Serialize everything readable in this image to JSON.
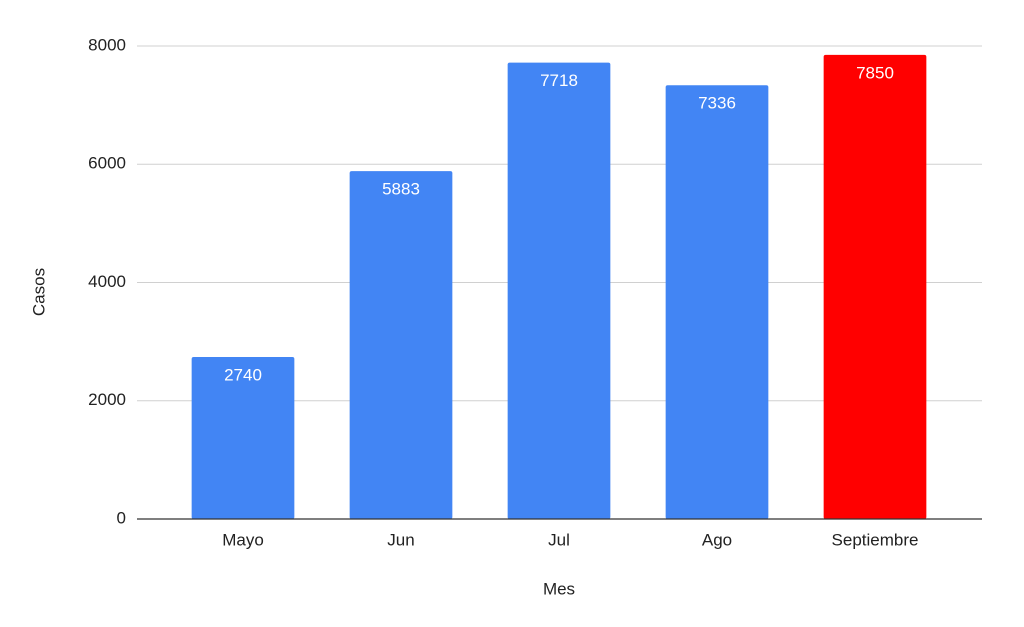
{
  "chart_data": {
    "type": "bar",
    "x_label": "Mes",
    "y_label": "Casos",
    "categories": [
      "Mayo",
      "Jun",
      "Jul",
      "Ago",
      "Septiembre"
    ],
    "values": [
      2740,
      5883,
      7718,
      7336,
      7850
    ],
    "colors": [
      "#4285f4",
      "#4285f4",
      "#4285f4",
      "#4285f4",
      "#ff0000"
    ],
    "ylim": [
      0,
      8000
    ],
    "yticks": [
      0,
      2000,
      4000,
      6000,
      8000
    ],
    "grid": true
  }
}
